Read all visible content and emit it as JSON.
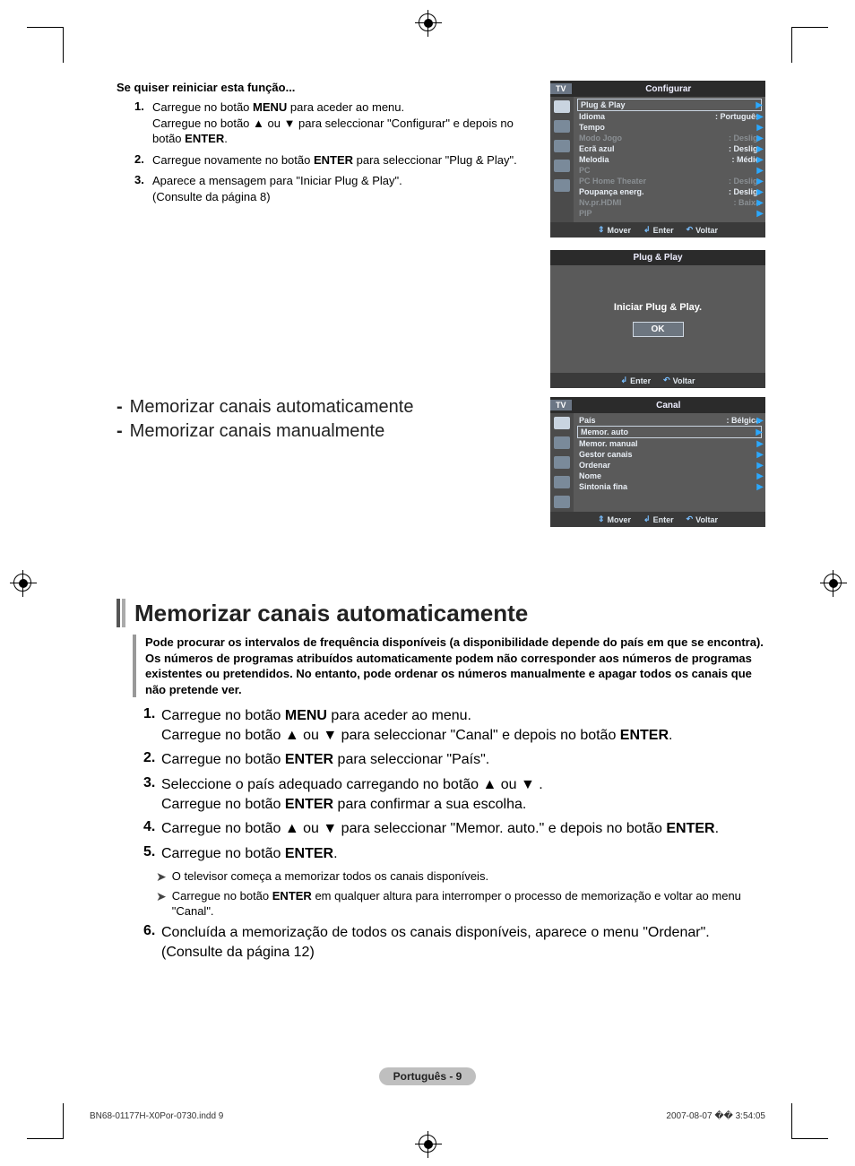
{
  "reset": {
    "heading": "Se quiser reiniciar esta função...",
    "steps": [
      {
        "n": "1.",
        "html": "Carregue no botão <b>MENU</b> para aceder ao menu.<br>Carregue no botão ▲ ou ▼ para seleccionar \"Configurar\" e depois no botão <b>ENTER</b>."
      },
      {
        "n": "2.",
        "html": "Carregue novamente no botão <b>ENTER</b> para seleccionar \"Plug & Play\"."
      },
      {
        "n": "3.",
        "html": "Aparece a mensagem para \"Iniciar Plug & Play\".<br>(Consulte da página 8)"
      }
    ]
  },
  "osd1": {
    "tv": "TV",
    "title": "Configurar",
    "rows": [
      {
        "label": "Plug & Play",
        "value": "",
        "boxed": true,
        "dim": false
      },
      {
        "label": "Idioma",
        "value": ": Português",
        "dim": false
      },
      {
        "label": "Tempo",
        "value": "",
        "dim": false
      },
      {
        "label": "Modo Jogo",
        "value": ": Deslig.",
        "dim": true
      },
      {
        "label": "Ecrã azul",
        "value": ": Deslig.",
        "dim": false
      },
      {
        "label": "Melodia",
        "value": ": Médio",
        "dim": false
      },
      {
        "label": "PC",
        "value": "",
        "dim": true
      },
      {
        "label": "PC Home Theater",
        "value": ": Deslig.",
        "dim": true
      },
      {
        "label": "Poupança energ.",
        "value": ": Deslig.",
        "dim": false
      },
      {
        "label": "Nv.pr.HDMI",
        "value": ": Baixa",
        "dim": true
      },
      {
        "label": "PIP",
        "value": "",
        "dim": true
      }
    ],
    "footer": {
      "mover": "Mover",
      "enter": "Enter",
      "voltar": "Voltar"
    }
  },
  "osd2": {
    "title": "Plug & Play",
    "msg": "Iniciar Plug & Play.",
    "ok": "OK",
    "footer": {
      "enter": "Enter",
      "voltar": "Voltar"
    }
  },
  "sec2": {
    "bullets": [
      "Memorizar canais automaticamente",
      "Memorizar canais manualmente"
    ]
  },
  "osd3": {
    "tv": "TV",
    "title": "Canal",
    "rows": [
      {
        "label": "País",
        "value": ":  Bélgica",
        "dim": false
      },
      {
        "label": "Memor. auto",
        "value": "",
        "boxed": true,
        "dim": false
      },
      {
        "label": "Memor. manual",
        "value": "",
        "dim": false
      },
      {
        "label": "Gestor canais",
        "value": "",
        "dim": false
      },
      {
        "label": "Ordenar",
        "value": "",
        "dim": false
      },
      {
        "label": "Nome",
        "value": "",
        "dim": false
      },
      {
        "label": "Sintonia fina",
        "value": "",
        "dim": false
      }
    ],
    "footer": {
      "mover": "Mover",
      "enter": "Enter",
      "voltar": "Voltar"
    }
  },
  "article": {
    "title": "Memorizar canais automaticamente",
    "intro": "Pode procurar os intervalos de frequência disponíveis (a disponibilidade depende do país em que se encontra). Os números de programas atribuídos automaticamente podem não corresponder aos números de programas existentes ou pretendidos. No entanto, pode ordenar os números manualmente e apagar todos os canais que não pretende ver.",
    "steps": [
      {
        "n": "1.",
        "html": "Carregue no botão <b>MENU</b> para aceder ao menu.<br>Carregue no botão ▲ ou ▼ para seleccionar \"Canal\" e depois no botão <b>ENTER</b>."
      },
      {
        "n": "2.",
        "html": "Carregue no botão <b>ENTER</b> para seleccionar \"País\"."
      },
      {
        "n": "3.",
        "html": "Seleccione o país adequado carregando no botão ▲ ou ▼ .<br>Carregue no botão <b>ENTER</b> para confirmar a sua escolha."
      },
      {
        "n": "4.",
        "html": "Carregue no botão ▲ ou ▼ para seleccionar \"Memor. auto.\" e depois no botão <b>ENTER</b>."
      },
      {
        "n": "5.",
        "html": "Carregue no botão <b>ENTER</b>."
      }
    ],
    "notes": [
      "O televisor começa a memorizar todos os canais disponíveis.",
      "Carregue no botão <b>ENTER</b> em qualquer altura para interromper o processo de memorização e voltar ao menu \"Canal\"."
    ],
    "step6": {
      "n": "6.",
      "html": "Concluída a memorização de todos os canais disponíveis, aparece o menu \"Ordenar\".<br>(Consulte da página 12)"
    }
  },
  "footer": {
    "text": "Português - 9"
  },
  "printmeta": {
    "left": "BN68-01177H-X0Por-0730.indd   9",
    "right": "2007-08-07   �� 3:54:05"
  }
}
